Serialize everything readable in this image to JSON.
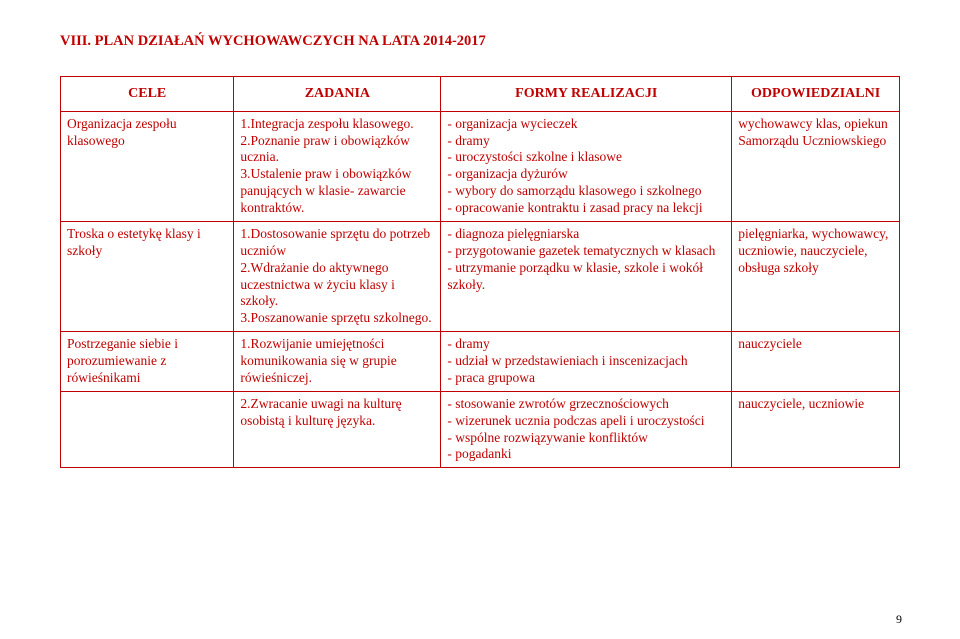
{
  "heading": "VIII. PLAN DZIAŁAŃ WYCHOWAWCZYCH NA LATA 2014-2017",
  "columns": [
    "CELE",
    "ZADANIA",
    "FORMY REALIZACJI",
    "ODPOWIEDZIALNI"
  ],
  "rows": [
    {
      "cele": "Organizacja zespołu klasowego",
      "zadania": "1.Integracja zespołu klasowego.\n2.Poznanie praw i obowiązków ucznia.\n3.Ustalenie praw i obowiązków panujących w klasie- zawarcie kontraktów.",
      "formy": "- organizacja wycieczek\n- dramy\n- uroczystości szkolne i klasowe\n- organizacja dyżurów\n- wybory do samorządu klasowego i szkolnego\n- opracowanie kontraktu i zasad pracy na lekcji",
      "odp": "wychowawcy klas, opiekun Samorządu Uczniowskiego"
    },
    {
      "cele": "Troska o estetykę klasy i szkoły",
      "zadania": "1.Dostosowanie sprzętu do potrzeb uczniów\n2.Wdrażanie do aktywnego uczestnictwa w życiu klasy i szkoły.\n3.Poszanowanie sprzętu szkolnego.",
      "formy": "- diagnoza pielęgniarska\n- przygotowanie gazetek tematycznych w klasach\n- utrzymanie porządku w klasie, szkole i wokół szkoły.",
      "odp": "pielęgniarka, wychowawcy, uczniowie, nauczyciele, obsługa szkoły"
    },
    {
      "cele": "Postrzeganie siebie i porozumiewanie z rówieśnikami",
      "zadania": "1.Rozwijanie umiejętności komunikowania się w grupie rówieśniczej.",
      "formy": "- dramy\n- udział w przedstawieniach i inscenizacjach\n- praca grupowa",
      "odp": "nauczyciele"
    },
    {
      "cele": "",
      "zadania": "2.Zwracanie uwagi na kulturę osobistą i kulturę języka.",
      "formy": "- stosowanie zwrotów grzecznościowych\n- wizerunek ucznia podczas apeli i uroczystości\n - wspólne rozwiązywanie konfliktów\n- pogadanki",
      "odp": "nauczyciele, uczniowie"
    }
  ],
  "page_number": "9",
  "colors": {
    "text": "#c00000",
    "border": "#c00000",
    "background": "#ffffff",
    "pagenum": "#000000"
  }
}
